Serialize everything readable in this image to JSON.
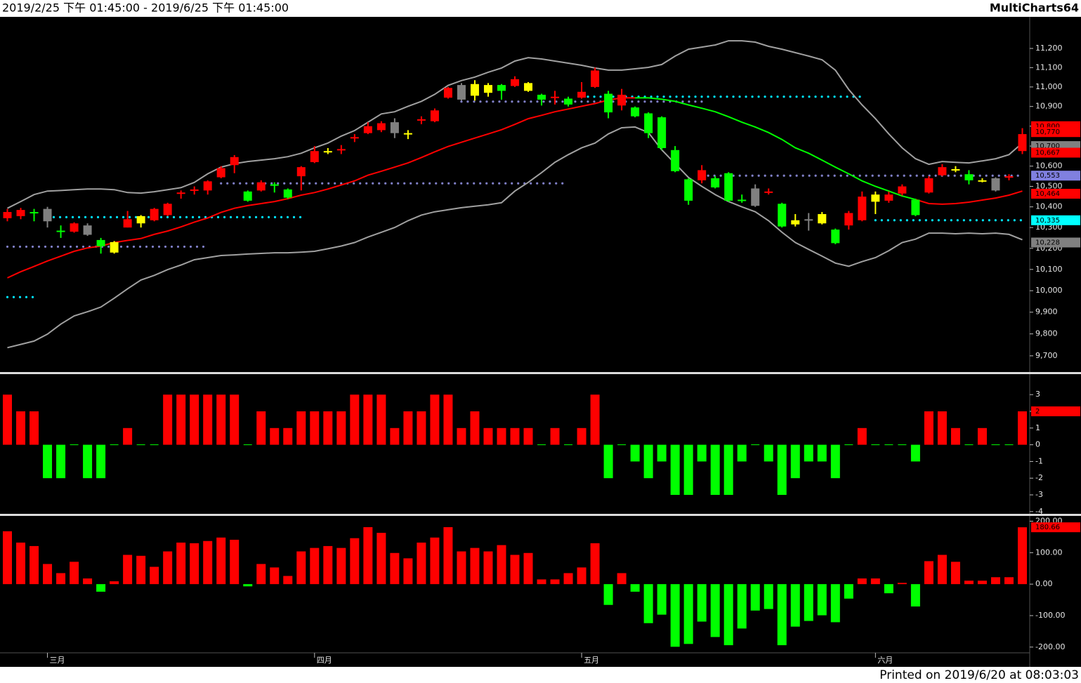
{
  "header": {
    "range": "2019/2/25 下午 01:45:00 - 2019/6/25 下午 01:45:00",
    "app": "MultiCharts64"
  },
  "footer": {
    "printed": "Printed on 2019/6/20 at 08:03:03"
  },
  "chart_data": [
    {
      "type": "candlestick",
      "categories": [
        null,
        null,
        null,
        "三月",
        null,
        null,
        null,
        null,
        null,
        null,
        null,
        null,
        null,
        null,
        null,
        null,
        null,
        null,
        null,
        null,
        null,
        null,
        null,
        "四月",
        null,
        null,
        null,
        null,
        null,
        null,
        null,
        null,
        null,
        null,
        null,
        null,
        null,
        null,
        null,
        null,
        null,
        null,
        null,
        "五月",
        null,
        null,
        null,
        null,
        null,
        null,
        null,
        null,
        null,
        null,
        null,
        null,
        null,
        null,
        null,
        null,
        null,
        null,
        null,
        null,
        null,
        "六月",
        null,
        null,
        null,
        null,
        null,
        null,
        null,
        null,
        null,
        null,
        null
      ],
      "open": [
        10345,
        10355,
        10375,
        10390,
        10285,
        10280,
        10310,
        10240,
        10230,
        10300,
        10355,
        10335,
        10360,
        10465,
        10480,
        10480,
        10545,
        10605,
        10475,
        10480,
        10510,
        10485,
        10550,
        10620,
        10675,
        10680,
        10740,
        10765,
        10780,
        10820,
        10765,
        10830,
        10825,
        10945,
        11010,
        11015,
        11010,
        11010,
        11005,
        11020,
        10960,
        10945,
        10940,
        10945,
        11000,
        10965,
        10905,
        10895,
        10865,
        10845,
        10680,
        10535,
        10530,
        10540,
        10565,
        10435,
        10490,
        10470,
        10415,
        10335,
        10340,
        10365,
        10290,
        10310,
        10335,
        10460,
        10430,
        10465,
        10435,
        10470,
        10555,
        10580,
        10560,
        10530,
        10540,
        10545,
        10675
      ],
      "high": [
        10390,
        10395,
        10390,
        10400,
        10310,
        10325,
        10320,
        10250,
        10235,
        10380,
        10360,
        10395,
        10420,
        10480,
        10500,
        10530,
        10600,
        10655,
        10480,
        10530,
        10520,
        10490,
        10600,
        10700,
        10690,
        10705,
        10760,
        10820,
        10825,
        10840,
        10780,
        10850,
        10890,
        11000,
        11020,
        11035,
        11020,
        11015,
        11055,
        11025,
        10965,
        10980,
        10950,
        11025,
        11100,
        10980,
        10990,
        10900,
        10870,
        10850,
        10700,
        10540,
        10605,
        10550,
        10570,
        10460,
        10510,
        10490,
        10420,
        10365,
        10370,
        10375,
        10295,
        10380,
        10475,
        10475,
        10475,
        10510,
        10440,
        10550,
        10610,
        10600,
        10580,
        10540,
        10545,
        10560,
        10790
      ],
      "low": [
        10330,
        10340,
        10330,
        10300,
        10250,
        10275,
        10260,
        10175,
        10175,
        10300,
        10300,
        10330,
        10355,
        10440,
        10460,
        10460,
        10540,
        10565,
        10425,
        10475,
        10470,
        10440,
        10480,
        10615,
        10660,
        10660,
        10720,
        10760,
        10770,
        10740,
        10735,
        10810,
        10820,
        10940,
        10930,
        10930,
        10950,
        10935,
        11000,
        10975,
        10905,
        10910,
        10900,
        10940,
        10995,
        10840,
        10880,
        10845,
        10740,
        10680,
        10570,
        10410,
        10515,
        10490,
        10425,
        10420,
        10400,
        10460,
        10300,
        10305,
        10285,
        10315,
        10220,
        10290,
        10330,
        10365,
        10420,
        10455,
        10355,
        10465,
        10550,
        10570,
        10510,
        10520,
        10475,
        10530,
        10660
      ],
      "close": [
        10375,
        10385,
        10370,
        10330,
        10280,
        10320,
        10265,
        10210,
        10180,
        10340,
        10320,
        10390,
        10415,
        10470,
        10485,
        10525,
        10590,
        10645,
        10430,
        10520,
        10505,
        10445,
        10595,
        10675,
        10670,
        10685,
        10745,
        10800,
        10815,
        10765,
        10760,
        10835,
        10880,
        10995,
        10935,
        10955,
        10970,
        10980,
        11040,
        10980,
        10935,
        10950,
        10910,
        10975,
        11085,
        10870,
        10960,
        10850,
        10765,
        10690,
        10575,
        10430,
        10580,
        10495,
        10430,
        10430,
        10405,
        10475,
        10305,
        10315,
        10335,
        10320,
        10225,
        10370,
        10450,
        10425,
        10460,
        10500,
        10360,
        10540,
        10595,
        10585,
        10530,
        10525,
        10480,
        10550,
        10760
      ],
      "candle_colors": [
        "#ff0000",
        "#ff0000",
        "#00ff00",
        "#808080",
        "#00ff00",
        "#ff0000",
        "#808080",
        "#00ff00",
        "#ffff00",
        "#ff0000",
        "#ffff00",
        "#ff0000",
        "#ff0000",
        "#ff0000",
        "#ff0000",
        "#ff0000",
        "#ff0000",
        "#ff0000",
        "#00ff00",
        "#ff0000",
        "#00ff00",
        "#00ff00",
        "#ff0000",
        "#ff0000",
        "#ffff00",
        "#ff0000",
        "#ff0000",
        "#ff0000",
        "#ff0000",
        "#808080",
        "#ffff00",
        "#ff0000",
        "#ff0000",
        "#ff0000",
        "#808080",
        "#ffff00",
        "#ffff00",
        "#00ff00",
        "#ff0000",
        "#ffff00",
        "#00ff00",
        "#ff0000",
        "#00ff00",
        "#ff0000",
        "#ff0000",
        "#00ff00",
        "#ff0000",
        "#00ff00",
        "#00ff00",
        "#00ff00",
        "#00ff00",
        "#00ff00",
        "#ff0000",
        "#00ff00",
        "#00ff00",
        "#00ff00",
        "#808080",
        "#ff0000",
        "#00ff00",
        "#ffff00",
        "#808080",
        "#ffff00",
        "#00ff00",
        "#ff0000",
        "#ff0000",
        "#ffff00",
        "#ff0000",
        "#ff0000",
        "#00ff00",
        "#ff0000",
        "#ff0000",
        "#ffff00",
        "#00ff00",
        "#ffff00",
        "#808080",
        "#ff0000",
        "#ff0000"
      ],
      "log_scale": true,
      "ylim": [
        9633,
        11363
      ],
      "yticks": [
        {
          "value": 9700,
          "label": "9,700"
        },
        {
          "value": 9800,
          "label": "9,800"
        },
        {
          "value": 9900,
          "label": "9,900"
        },
        {
          "value": 10000,
          "label": "10,000"
        },
        {
          "value": 10100,
          "label": "10,100"
        },
        {
          "value": 10200,
          "label": "10,200"
        },
        {
          "value": 10300,
          "label": "10,300"
        },
        {
          "value": 10400,
          "label": "10,400"
        },
        {
          "value": 10500,
          "label": "10,500"
        },
        {
          "value": 10600,
          "label": "10,600"
        },
        {
          "value": 10700,
          "label": "10,700"
        },
        {
          "value": 10800,
          "label": "10,800"
        },
        {
          "value": 10900,
          "label": "10,900"
        },
        {
          "value": 11000,
          "label": "11,000"
        },
        {
          "value": 11100,
          "label": "11,100"
        },
        {
          "value": 11200,
          "label": "11,200"
        }
      ],
      "series": [
        {
          "color": "#a0a0a0",
          "values": [
            10393,
            10426,
            10460,
            10477,
            10480,
            10484,
            10487,
            10487,
            10484,
            10470,
            10467,
            10474,
            10484,
            10494,
            10520,
            10562,
            10595,
            10612,
            10623,
            10630,
            10637,
            10647,
            10664,
            10691,
            10715,
            10750,
            10778,
            10820,
            10862,
            10873,
            10901,
            10926,
            10962,
            11008,
            11033,
            11051,
            11076,
            11098,
            11134,
            11152,
            11145,
            11134,
            11123,
            11112,
            11098,
            11087,
            11087,
            11094,
            11101,
            11116,
            11160,
            11196,
            11207,
            11218,
            11240,
            11240,
            11233,
            11211,
            11196,
            11178,
            11160,
            11141,
            11087,
            10987,
            10908,
            10838,
            10761,
            10691,
            10637,
            10609,
            10623,
            10619,
            10616,
            10626,
            10637,
            10657,
            10715
          ]
        },
        {
          "color": "#a0a0a0",
          "values": [
            9737,
            9752,
            9767,
            9799,
            9845,
            9883,
            9902,
            9924,
            9965,
            10009,
            10050,
            10072,
            10099,
            10121,
            10146,
            10156,
            10166,
            10169,
            10173,
            10176,
            10179,
            10179,
            10182,
            10186,
            10198,
            10211,
            10228,
            10254,
            10277,
            10300,
            10333,
            10360,
            10376,
            10386,
            10396,
            10403,
            10410,
            10420,
            10477,
            10520,
            10568,
            10619,
            10657,
            10691,
            10715,
            10761,
            10792,
            10796,
            10768,
            10681,
            10612,
            10544,
            10500,
            10460,
            10426,
            10400,
            10376,
            10333,
            10277,
            10228,
            10195,
            10163,
            10130,
            10115,
            10137,
            10156,
            10189,
            10228,
            10244,
            10273,
            10273,
            10270,
            10273,
            10270,
            10273,
            10267,
            10241
          ]
        },
        {
          "color": "#ff0000",
          "values": [
            10060,
            10089,
            10114,
            10140,
            10163,
            10186,
            10202,
            10211,
            10228,
            10238,
            10247,
            10267,
            10283,
            10303,
            10326,
            10346,
            10373,
            10393,
            10406,
            10416,
            10426,
            10440,
            10457,
            10470,
            10487,
            10507,
            10527,
            10555,
            10575,
            10595,
            10616,
            10643,
            10671,
            10698,
            10719,
            10740,
            10761,
            10782,
            10809,
            10838,
            10855,
            10873,
            10887,
            10901,
            10915,
            10933,
            10944,
            10944,
            null,
            null,
            null,
            null,
            null,
            null,
            null,
            null,
            null,
            null,
            null,
            null,
            null,
            null,
            null,
            null,
            null,
            null,
            null,
            null,
            10436,
            10416,
            10413,
            10416,
            10423,
            10433,
            10443,
            10457,
            10477
          ]
        },
        {
          "color": "#00ff00",
          "values": [
            null,
            null,
            null,
            null,
            null,
            null,
            null,
            null,
            null,
            null,
            null,
            null,
            null,
            null,
            null,
            null,
            null,
            null,
            null,
            null,
            null,
            null,
            null,
            null,
            null,
            null,
            null,
            null,
            null,
            null,
            null,
            null,
            null,
            null,
            null,
            null,
            null,
            null,
            null,
            null,
            null,
            null,
            null,
            null,
            null,
            null,
            null,
            10944,
            10944,
            10937,
            10926,
            10908,
            10891,
            10873,
            10848,
            10820,
            10796,
            10768,
            10733,
            10691,
            10664,
            10630,
            10595,
            10562,
            10527,
            10500,
            10477,
            10453,
            10436,
            null,
            null,
            null,
            null,
            null,
            null,
            null,
            null
          ]
        }
      ],
      "levels": [
        {
          "value": 9970,
          "from": 0,
          "to": 2,
          "color": "#00e5ff"
        },
        {
          "value": 10208,
          "from": 0,
          "to": 15,
          "color": "#8080c8"
        },
        {
          "value": 10350,
          "from": 3,
          "to": 22,
          "color": "#00e5ff"
        },
        {
          "value": 10515,
          "from": 16,
          "to": 42,
          "color": "#8080c8"
        },
        {
          "value": 10925,
          "from": 34,
          "to": 52,
          "color": "#8080c8"
        },
        {
          "value": 10950,
          "from": 43,
          "to": 64,
          "color": "#00e5ff"
        },
        {
          "value": 10553,
          "from": 52,
          "to": 76,
          "color": "#8080c8"
        },
        {
          "value": 10335,
          "from": 65,
          "to": 76,
          "color": "#00e5ff"
        }
      ],
      "price_markers": [
        {
          "value": 10800,
          "label": "10,800",
          "color": "#ff0000"
        },
        {
          "value": 10770,
          "label": "10,770",
          "color": "#ff0000"
        },
        {
          "value": 10700,
          "label": "10,700",
          "color": "#808080"
        },
        {
          "value": 10667,
          "label": "10,667",
          "color": "#ff0000"
        },
        {
          "value": 10553,
          "label": "10,553",
          "color": "#8080e0"
        },
        {
          "value": 10464,
          "label": "10,464",
          "color": "#ff0000"
        },
        {
          "value": 10335,
          "label": "10,335",
          "color": "#00ffff"
        },
        {
          "value": 10228,
          "label": "10,228",
          "color": "#808080"
        }
      ]
    },
    {
      "type": "bar",
      "values": [
        3,
        2,
        2,
        -2,
        -2,
        0,
        -2,
        -2,
        0,
        1,
        0,
        0,
        3,
        3,
        3,
        3,
        3,
        3,
        0,
        2,
        1,
        1,
        2,
        2,
        2,
        2,
        3,
        3,
        3,
        1,
        2,
        2,
        3,
        3,
        1,
        2,
        1,
        1,
        1,
        1,
        0,
        1,
        0,
        1,
        3,
        -2,
        0,
        -1,
        -2,
        -1,
        -3,
        -3,
        -1,
        -3,
        -3,
        -1,
        0,
        -1,
        -3,
        -2,
        -1,
        -1,
        -2,
        0,
        1,
        0,
        0,
        0,
        -1,
        2,
        2,
        1,
        0,
        1,
        0,
        0,
        2
      ],
      "up_color": "#ff0000",
      "down_color": "#00ff00",
      "ylim": [
        -4.05,
        4.1
      ],
      "yticks": [
        3,
        2,
        1,
        0,
        -1,
        -2,
        -3,
        -4
      ],
      "marker": {
        "value": 2,
        "color": "#ff0000"
      }
    },
    {
      "type": "bar",
      "values": [
        168,
        132,
        121,
        64,
        35,
        71,
        18,
        -24,
        9,
        93,
        90,
        55,
        104,
        132,
        130,
        137,
        148,
        141,
        -7,
        64,
        53,
        26,
        104,
        115,
        121,
        115,
        146,
        181,
        163,
        99,
        82,
        132,
        148,
        181,
        104,
        115,
        104,
        124,
        93,
        99,
        15,
        15,
        35,
        53,
        130,
        -66,
        35,
        -24,
        -124,
        -97,
        -199,
        -190,
        -119,
        -168,
        -194,
        -141,
        -84,
        -79,
        -194,
        -135,
        -117,
        -99,
        -121,
        -46,
        18,
        18,
        -29,
        4,
        -71,
        73,
        93,
        71,
        11,
        11,
        22,
        22,
        180.66
      ],
      "up_color": "#ff0000",
      "down_color": "#00ff00",
      "ylim": [
        -216,
        210
      ],
      "yticks": [
        {
          "value": 200,
          "label": "200.00"
        },
        {
          "value": 100,
          "label": "100.00"
        },
        {
          "value": 0,
          "label": "0.00"
        },
        {
          "value": -100,
          "label": "-100.00"
        },
        {
          "value": -200,
          "label": "-200.00"
        }
      ],
      "marker": {
        "value": 180.66,
        "color": "#ff0000"
      }
    }
  ]
}
